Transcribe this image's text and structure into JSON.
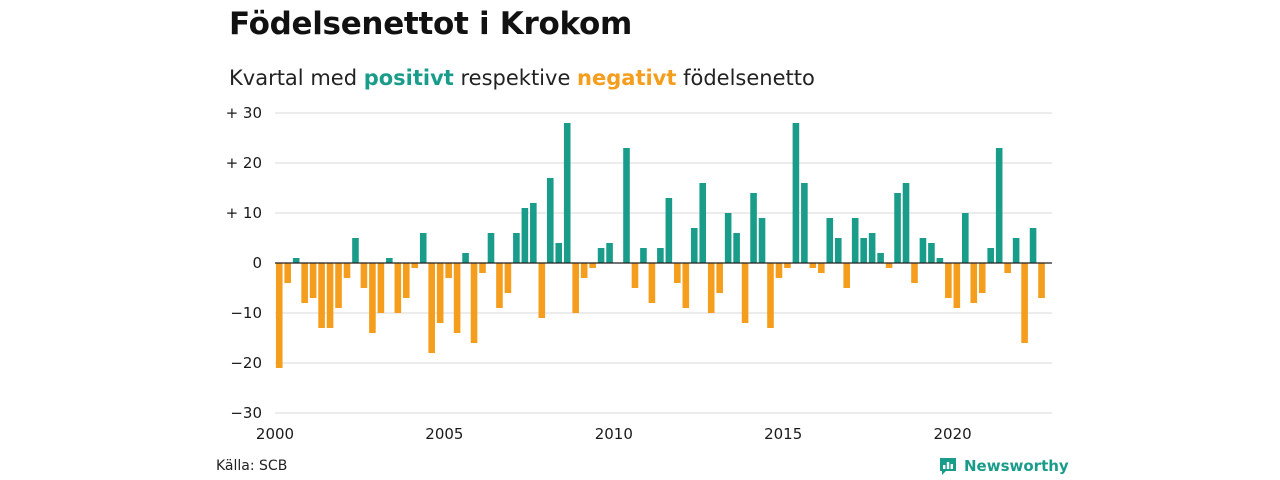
{
  "header": {
    "title": "Födelsenettot i Krokom",
    "subtitle_prefix": "Kvartal med ",
    "subtitle_positive": "positivt",
    "subtitle_middle": " respektive ",
    "subtitle_negative": "negativt",
    "subtitle_suffix": " födelsenetto"
  },
  "footer": {
    "source": "Källa: SCB",
    "brand": "Newsworthy",
    "brand_icon": "bar-chart-speech-icon"
  },
  "colors": {
    "positive": "#1a9c8b",
    "negative": "#f59d1c",
    "grid": "#d9d9d9",
    "zero_line": "#222222"
  },
  "chart_data": {
    "type": "bar",
    "title": "Födelsenettot i Krokom",
    "xlabel": "",
    "ylabel": "",
    "ylim": [
      -30,
      30
    ],
    "y_ticks": [
      30,
      20,
      10,
      0,
      -10,
      -20,
      -30
    ],
    "y_tick_labels": [
      "+ 30",
      "+ 20",
      "+ 10",
      "0",
      "−10",
      "−20",
      "−30"
    ],
    "x_ticks": [
      2000,
      2005,
      2010,
      2015,
      2020
    ],
    "x_tick_labels": [
      "2000",
      "2005",
      "2010",
      "2015",
      "2020"
    ],
    "grid": true,
    "start_year": 2000,
    "start_quarter": 1,
    "categories": [
      "2000 K1",
      "2000 K2",
      "2000 K3",
      "2000 K4",
      "2001 K1",
      "2001 K2",
      "2001 K3",
      "2001 K4",
      "2002 K1",
      "2002 K2",
      "2002 K3",
      "2002 K4",
      "2003 K1",
      "2003 K2",
      "2003 K3",
      "2003 K4",
      "2004 K1",
      "2004 K2",
      "2004 K3",
      "2004 K4",
      "2005 K1",
      "2005 K2",
      "2005 K3",
      "2005 K4",
      "2006 K1",
      "2006 K2",
      "2006 K3",
      "2006 K4",
      "2007 K1",
      "2007 K2",
      "2007 K3",
      "2007 K4",
      "2008 K1",
      "2008 K2",
      "2008 K3",
      "2008 K4",
      "2009 K1",
      "2009 K2",
      "2009 K3",
      "2009 K4",
      "2010 K1",
      "2010 K2",
      "2010 K3",
      "2010 K4",
      "2011 K1",
      "2011 K2",
      "2011 K3",
      "2011 K4",
      "2012 K1",
      "2012 K2",
      "2012 K3",
      "2012 K4",
      "2013 K1",
      "2013 K2",
      "2013 K3",
      "2013 K4",
      "2014 K1",
      "2014 K2",
      "2014 K3",
      "2014 K4",
      "2015 K1",
      "2015 K2",
      "2015 K3",
      "2015 K4",
      "2016 K1",
      "2016 K2",
      "2016 K3",
      "2016 K4",
      "2017 K1",
      "2017 K2",
      "2017 K3",
      "2017 K4",
      "2018 K1",
      "2018 K2",
      "2018 K3",
      "2018 K4",
      "2019 K1",
      "2019 K2",
      "2019 K3",
      "2019 K4",
      "2020 K1",
      "2020 K2",
      "2020 K3",
      "2020 K4",
      "2021 K1",
      "2021 K2",
      "2021 K3",
      "2021 K4",
      "2022 K1",
      "2022 K2",
      "2022 K3",
      "2022 K4"
    ],
    "values": [
      -21,
      -4,
      1,
      -8,
      -7,
      -13,
      -13,
      -9,
      -3,
      5,
      -5,
      -14,
      -10,
      1,
      -10,
      -7,
      -1,
      6,
      -18,
      -12,
      -3,
      -14,
      2,
      -16,
      -2,
      6,
      -9,
      -6,
      6,
      11,
      12,
      -11,
      17,
      4,
      28,
      -10,
      -3,
      -1,
      3,
      4,
      0,
      23,
      -5,
      3,
      -8,
      3,
      13,
      -4,
      -9,
      7,
      16,
      -10,
      -6,
      10,
      6,
      -12,
      14,
      9,
      -13,
      -3,
      -1,
      28,
      16,
      -1,
      -2,
      9,
      5,
      -5,
      9,
      5,
      6,
      2,
      -1,
      14,
      16,
      -4,
      5,
      4,
      1,
      -7,
      -9,
      10,
      -8,
      -6,
      3,
      23,
      -2,
      5,
      -16,
      7,
      -7,
      0
    ]
  }
}
